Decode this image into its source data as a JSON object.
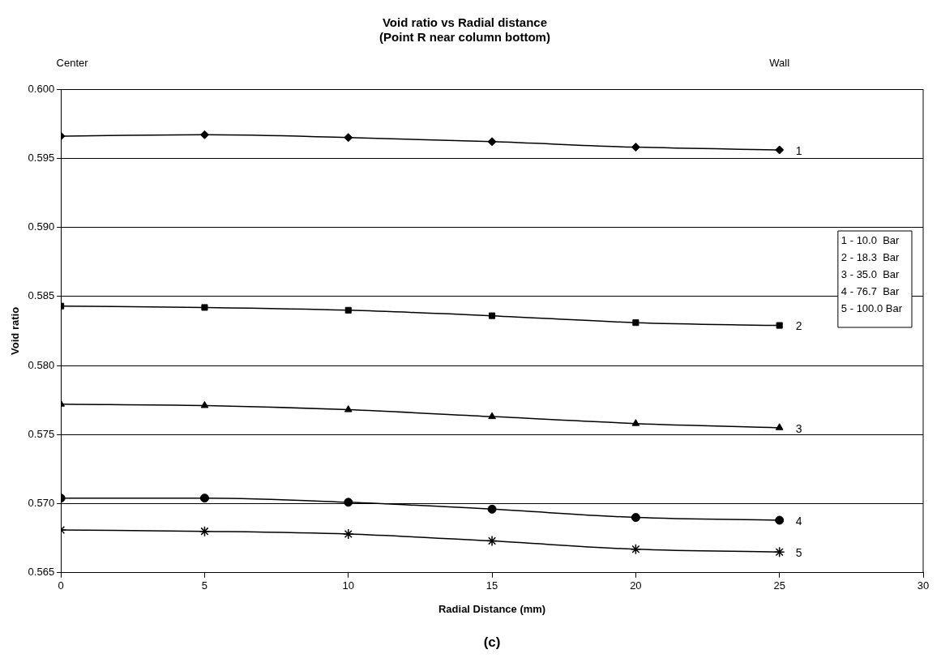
{
  "chart_data": {
    "type": "line",
    "title": "Void ratio vs Radial distance",
    "subtitle": "(Point R near column bottom)",
    "xlabel": "Radial Distance (mm)",
    "ylabel": "Void ratio",
    "x": [
      0,
      5,
      10,
      15,
      20,
      25
    ],
    "series": [
      {
        "name": "1",
        "color": "#000000",
        "marker": "diamond",
        "values": [
          0.5966,
          0.5967,
          0.5965,
          0.5962,
          0.5958,
          0.5956
        ]
      },
      {
        "name": "2",
        "color": "#000000",
        "marker": "square",
        "values": [
          0.5843,
          0.5842,
          0.584,
          0.5836,
          0.5831,
          0.5829
        ]
      },
      {
        "name": "3",
        "color": "#000000",
        "marker": "triangle",
        "values": [
          0.5772,
          0.5771,
          0.5768,
          0.5763,
          0.5758,
          0.5755
        ]
      },
      {
        "name": "4",
        "color": "#000000",
        "marker": "circle",
        "values": [
          0.5704,
          0.5704,
          0.5701,
          0.5696,
          0.569,
          0.5688
        ]
      },
      {
        "name": "5",
        "color": "#000000",
        "marker": "cross",
        "values": [
          0.5681,
          0.568,
          0.5678,
          0.5673,
          0.5667,
          0.5665
        ]
      }
    ],
    "xlim": [
      0,
      30
    ],
    "xticks": [
      0,
      5,
      10,
      15,
      20,
      25,
      30
    ],
    "ylim": [
      0.565,
      0.6
    ],
    "yticks": [
      {
        "value": 0.565,
        "label": "0.565"
      },
      {
        "value": 0.57,
        "label": "0.570"
      },
      {
        "value": 0.575,
        "label": "0.575"
      },
      {
        "value": 0.58,
        "label": "0.580"
      },
      {
        "value": 0.585,
        "label": "0.585"
      },
      {
        "value": 0.59,
        "label": "0.590"
      },
      {
        "value": 0.595,
        "label": "0.595"
      },
      {
        "value": 0.6,
        "label": "0.600"
      }
    ],
    "grid": "y",
    "legend": false,
    "line_style": "solid",
    "annotations": [
      "Center",
      "Wall",
      "1 - 10.0  Bar",
      "2 - 18.3  Bar",
      "3 - 35.0  Bar",
      "4 - 76.7  Bar",
      "5 - 100.0 Bar",
      "(c)"
    ]
  }
}
